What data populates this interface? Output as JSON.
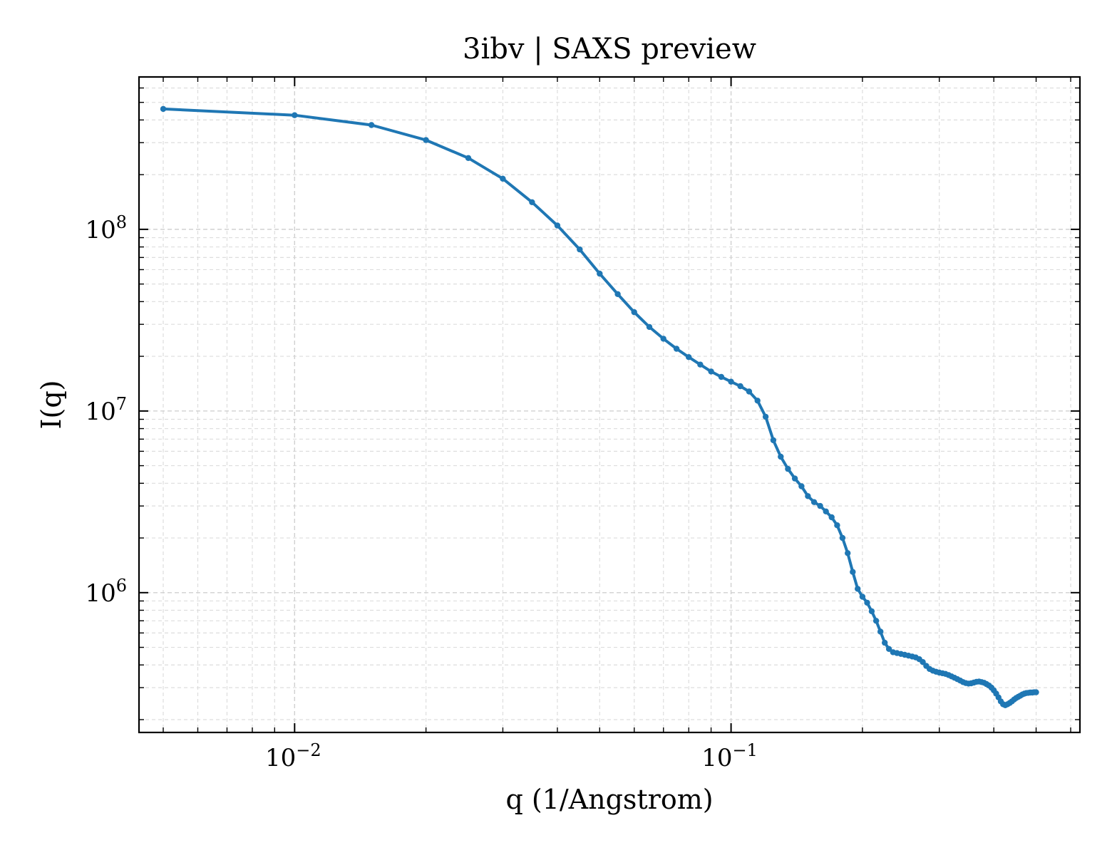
{
  "chart_data": {
    "type": "line",
    "title": "3ibv | SAXS preview",
    "xlabel": "q (1/Angstrom)",
    "ylabel": "I(q)",
    "xscale": "log",
    "yscale": "log",
    "xlim": [
      0.0044,
      0.63
    ],
    "ylim": [
      170000,
      690000000
    ],
    "grid": true,
    "legend": "none",
    "x_ticks": [
      {
        "value": 0.01,
        "base": "10",
        "exp": "−2"
      },
      {
        "value": 0.1,
        "base": "10",
        "exp": "−1"
      }
    ],
    "y_ticks": [
      {
        "value": 1000000,
        "base": "10",
        "exp": "6"
      },
      {
        "value": 10000000,
        "base": "10",
        "exp": "7"
      },
      {
        "value": 100000000,
        "base": "10",
        "exp": "8"
      }
    ],
    "series": [
      {
        "color": "#1f77b4",
        "x": [
          0.005,
          0.01,
          0.015,
          0.02,
          0.025,
          0.03,
          0.035,
          0.04,
          0.045,
          0.05,
          0.055,
          0.06,
          0.065,
          0.07,
          0.075,
          0.08,
          0.085,
          0.09,
          0.095,
          0.1,
          0.105,
          0.11,
          0.115,
          0.12,
          0.125,
          0.13,
          0.135,
          0.14,
          0.145,
          0.15,
          0.155,
          0.16,
          0.165,
          0.17,
          0.175,
          0.18,
          0.185,
          0.19,
          0.195,
          0.2,
          0.205,
          0.21,
          0.215,
          0.22,
          0.225,
          0.23,
          0.235,
          0.24,
          0.245,
          0.25,
          0.255,
          0.26,
          0.265,
          0.27,
          0.275,
          0.28,
          0.285,
          0.29,
          0.295,
          0.3,
          0.305,
          0.31,
          0.315,
          0.32,
          0.325,
          0.33,
          0.335,
          0.34,
          0.345,
          0.35,
          0.355,
          0.36,
          0.365,
          0.37,
          0.375,
          0.38,
          0.385,
          0.39,
          0.395,
          0.4,
          0.405,
          0.41,
          0.415,
          0.42,
          0.425,
          0.43,
          0.435,
          0.44,
          0.445,
          0.45,
          0.455,
          0.46,
          0.465,
          0.47,
          0.475,
          0.48,
          0.485,
          0.49,
          0.495,
          0.5
        ],
        "y": [
          460000000,
          425000000,
          375000000,
          310000000,
          247000000,
          190000000,
          141000000,
          105000000,
          77500000,
          57000000,
          44000000,
          35000000,
          29000000,
          25000000,
          22000000,
          19800000,
          18000000,
          16500000,
          15400000,
          14500000,
          13700000,
          12800000,
          11400000,
          9300000,
          6900000,
          5600000,
          4800000,
          4250000,
          3850000,
          3400000,
          3150000,
          3000000,
          2800000,
          2600000,
          2350000,
          2000000,
          1650000,
          1300000,
          1050000,
          950000,
          880000,
          790000,
          700000,
          610000,
          530000,
          490000,
          470000,
          465000,
          460000,
          455000,
          450000,
          445000,
          440000,
          430000,
          415000,
          395000,
          380000,
          372000,
          367000,
          363000,
          360000,
          357000,
          352000,
          346000,
          340000,
          334000,
          328000,
          322000,
          318000,
          316000,
          317000,
          320000,
          323000,
          324000,
          322000,
          319000,
          314000,
          308000,
          300000,
          290000,
          278000,
          265000,
          252000,
          243000,
          240000,
          243000,
          247000,
          252000,
          258000,
          263000,
          267000,
          271000,
          275000,
          278000,
          280000,
          281000,
          282000,
          282000,
          283000,
          283000
        ]
      }
    ]
  }
}
